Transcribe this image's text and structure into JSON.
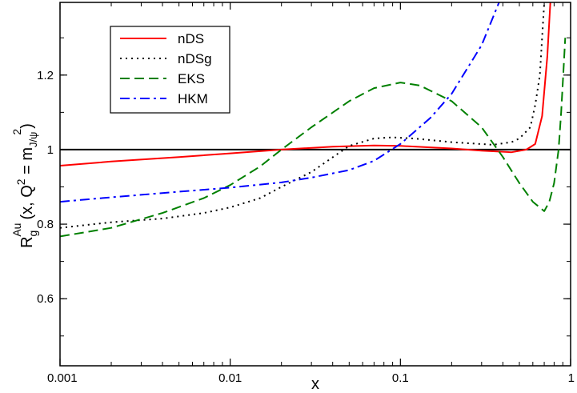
{
  "chart_data": {
    "type": "line",
    "title": "",
    "xlabel": "x",
    "ylabel": {
      "R": "R",
      "sub": "g",
      "sup": "Au",
      "args": "(x, Q",
      "sup2": "2",
      "eq": " = m",
      "sub2": "J/ψ",
      "sup3": "2",
      "close": ")"
    },
    "x_scale": "log",
    "xlim": [
      0.001,
      1
    ],
    "ylim": [
      0.42,
      1.395
    ],
    "x_ticks": [
      {
        "v": 0.001,
        "label": "0.001"
      },
      {
        "v": 0.01,
        "label": "0.01"
      },
      {
        "v": 0.1,
        "label": "0.1"
      },
      {
        "v": 1,
        "label": "1"
      }
    ],
    "y_ticks": [
      {
        "v": 0.6,
        "label": "0.6"
      },
      {
        "v": 0.8,
        "label": "0.8"
      },
      {
        "v": 1.0,
        "label": "1"
      },
      {
        "v": 1.2,
        "label": "1.2"
      }
    ],
    "reference_line": {
      "y": 1.0,
      "color": "#000000"
    },
    "legend_position": "top-left",
    "series": [
      {
        "name": "nDS",
        "color": "#ff0000",
        "dash": "solid",
        "points": [
          [
            0.001,
            0.957
          ],
          [
            0.002,
            0.968
          ],
          [
            0.005,
            0.98
          ],
          [
            0.01,
            0.99
          ],
          [
            0.02,
            1.0
          ],
          [
            0.04,
            1.008
          ],
          [
            0.07,
            1.011
          ],
          [
            0.1,
            1.01
          ],
          [
            0.2,
            1.003
          ],
          [
            0.3,
            0.997
          ],
          [
            0.45,
            0.993
          ],
          [
            0.55,
            1.0
          ],
          [
            0.62,
            1.015
          ],
          [
            0.68,
            1.09
          ],
          [
            0.73,
            1.25
          ],
          [
            0.76,
            1.395
          ]
        ]
      },
      {
        "name": "nDSg",
        "color": "#000000",
        "dash": "dotted",
        "points": [
          [
            0.001,
            0.79
          ],
          [
            0.002,
            0.805
          ],
          [
            0.004,
            0.815
          ],
          [
            0.007,
            0.83
          ],
          [
            0.01,
            0.845
          ],
          [
            0.015,
            0.87
          ],
          [
            0.02,
            0.9
          ],
          [
            0.03,
            0.94
          ],
          [
            0.05,
            1.01
          ],
          [
            0.07,
            1.03
          ],
          [
            0.09,
            1.033
          ],
          [
            0.12,
            1.03
          ],
          [
            0.2,
            1.02
          ],
          [
            0.35,
            1.013
          ],
          [
            0.45,
            1.02
          ],
          [
            0.5,
            1.03
          ],
          [
            0.58,
            1.06
          ],
          [
            0.62,
            1.12
          ],
          [
            0.66,
            1.2
          ],
          [
            0.68,
            1.3
          ],
          [
            0.7,
            1.395
          ]
        ]
      },
      {
        "name": "EKS",
        "color": "#008000",
        "dash": "dashed",
        "points": [
          [
            0.001,
            0.767
          ],
          [
            0.002,
            0.79
          ],
          [
            0.004,
            0.83
          ],
          [
            0.007,
            0.87
          ],
          [
            0.01,
            0.905
          ],
          [
            0.015,
            0.955
          ],
          [
            0.02,
            1.0
          ],
          [
            0.03,
            1.06
          ],
          [
            0.05,
            1.13
          ],
          [
            0.07,
            1.165
          ],
          [
            0.1,
            1.18
          ],
          [
            0.13,
            1.172
          ],
          [
            0.2,
            1.13
          ],
          [
            0.3,
            1.06
          ],
          [
            0.4,
            0.98
          ],
          [
            0.5,
            0.91
          ],
          [
            0.6,
            0.86
          ],
          [
            0.7,
            0.835
          ],
          [
            0.75,
            0.86
          ],
          [
            0.8,
            0.91
          ],
          [
            0.85,
            1.0
          ],
          [
            0.88,
            1.1
          ],
          [
            0.91,
            1.22
          ],
          [
            0.93,
            1.3
          ]
        ]
      },
      {
        "name": "HKM",
        "color": "#0000ff",
        "dash": "dashdot",
        "points": [
          [
            0.001,
            0.86
          ],
          [
            0.002,
            0.872
          ],
          [
            0.005,
            0.887
          ],
          [
            0.01,
            0.898
          ],
          [
            0.02,
            0.912
          ],
          [
            0.03,
            0.925
          ],
          [
            0.05,
            0.945
          ],
          [
            0.07,
            0.97
          ],
          [
            0.1,
            1.015
          ],
          [
            0.15,
            1.085
          ],
          [
            0.2,
            1.15
          ],
          [
            0.3,
            1.28
          ],
          [
            0.38,
            1.395
          ]
        ]
      }
    ]
  }
}
